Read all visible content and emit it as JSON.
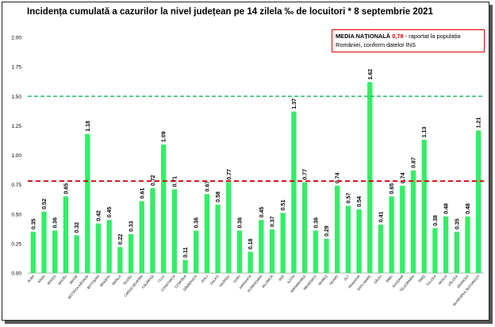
{
  "chart_data": {
    "type": "bar",
    "title": "Incidența cumulată a cazurilor la nivel județean pe 14 zilela ‰ de locuitori * 8 septembrie 2021",
    "categories": [
      "ALBA",
      "ARAD",
      "ARGEŞ",
      "BACĂU",
      "BIHOR",
      "BISTRIŢA-NĂSĂUD",
      "BOTOŞANI",
      "BRAŞOV",
      "BRĂILA",
      "BUZĂU",
      "CARAŞ-SEVERIN",
      "CĂLĂRAŞI",
      "CLUJ",
      "CONSTANŢA",
      "COVASNA",
      "DÂMBOVIŢA",
      "DOLJ",
      "GALAŢI",
      "GIURGIU",
      "GORJ",
      "HARGHITA",
      "HUNEDOARA",
      "IALOMIŢA",
      "IAŞI",
      "ILFOV",
      "MARAMUREŞ",
      "MEHEDINŢI",
      "MUREŞ",
      "NEAMŢ",
      "OLT",
      "PRAHOVA",
      "SATU MARE",
      "SĂLAJ",
      "SIBIU",
      "SUCEAVA",
      "TELEORMAN",
      "TIMIŞ",
      "TULCEA",
      "VASLUI",
      "VÂLCEA",
      "VRANCEA",
      "MUNICIPIUL BUCUREŞTI"
    ],
    "values": [
      0.35,
      0.52,
      0.36,
      0.65,
      0.32,
      1.18,
      0.42,
      0.45,
      0.22,
      0.33,
      0.61,
      0.72,
      1.09,
      0.71,
      0.11,
      0.36,
      0.67,
      0.58,
      0.77,
      0.36,
      0.18,
      0.45,
      0.37,
      0.51,
      1.37,
      0.77,
      0.36,
      0.29,
      0.74,
      0.57,
      0.54,
      1.62,
      0.41,
      0.65,
      0.74,
      0.87,
      1.13,
      0.38,
      0.48,
      0.35,
      0.48,
      1.21
    ],
    "data_labels": [
      "0.35",
      "0.52",
      "0.36",
      "0.65",
      "0.32",
      "1.18",
      "0.42",
      "0.45",
      "0.22",
      "0.33",
      "0.61",
      "0.72",
      "1.09",
      "0.71",
      "0.11",
      "0.36",
      "0.67",
      "0.58",
      "0.77",
      "0.36",
      "0.18",
      "0.45",
      "0.37",
      "0.51",
      "1.37",
      "0.77",
      "0.36",
      "0.29",
      "0.74",
      "0.57",
      "0.54",
      "1.62",
      "0.41",
      "0.65",
      "0.74",
      "0.87",
      "1.13",
      "0.38",
      "0.48",
      "0.35",
      "0.48",
      "1.21"
    ],
    "yticks": [
      "0.00",
      "0.25",
      "0.50",
      "0.75",
      "1.00",
      "1.25",
      "1.50",
      "1.75",
      "2.00"
    ],
    "ylim": [
      0,
      2
    ],
    "reference_lines": [
      {
        "value": 1.5,
        "color": "#00b050",
        "style": "dashed"
      },
      {
        "value": 0.78,
        "color": "#d00000",
        "style": "dashed"
      }
    ],
    "bar_color": "#33ee66",
    "grid": false
  },
  "note": {
    "label": "MEDIA NAȚIONALĂ",
    "value": "0,78",
    "text": " - raportat la populația României, conform datelor INS"
  }
}
